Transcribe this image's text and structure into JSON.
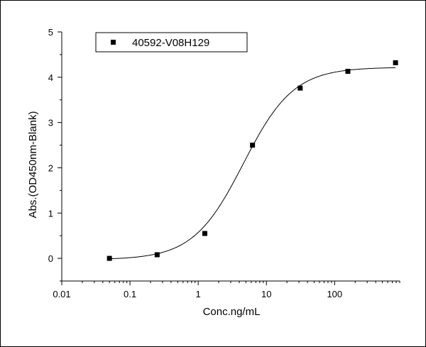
{
  "chart_data": {
    "type": "scatter",
    "xlabel": "Conc.ng/mL",
    "ylabel": "Abs.(OD450nm-Blank)",
    "x_scale": "log",
    "xlim": [
      0.01,
      900
    ],
    "ylim": [
      -0.5,
      5
    ],
    "x_ticks": [
      {
        "value": 0.01,
        "label": "0.01"
      },
      {
        "value": 0.1,
        "label": "0.1"
      },
      {
        "value": 1,
        "label": "1"
      },
      {
        "value": 10,
        "label": "10"
      },
      {
        "value": 100,
        "label": "100"
      }
    ],
    "y_ticks": [
      {
        "value": 0,
        "label": "0"
      },
      {
        "value": 1,
        "label": "1"
      },
      {
        "value": 2,
        "label": "2"
      },
      {
        "value": 3,
        "label": "3"
      },
      {
        "value": 4,
        "label": "4"
      },
      {
        "value": 5,
        "label": "5"
      }
    ],
    "legend_position": "top-left",
    "series": [
      {
        "name": "40592-V08H129",
        "marker": "square",
        "color": "#000000",
        "points": [
          {
            "x": 0.05,
            "y": 0.0
          },
          {
            "x": 0.25,
            "y": 0.08
          },
          {
            "x": 1.25,
            "y": 0.55
          },
          {
            "x": 6.25,
            "y": 2.5
          },
          {
            "x": 31.25,
            "y": 3.76
          },
          {
            "x": 156.25,
            "y": 4.13
          },
          {
            "x": 781.25,
            "y": 4.32
          }
        ],
        "fit_curve": {
          "type": "4PL",
          "bottom": -0.03,
          "top": 4.22,
          "ec50": 4.6,
          "hill": 1.18
        }
      }
    ]
  }
}
